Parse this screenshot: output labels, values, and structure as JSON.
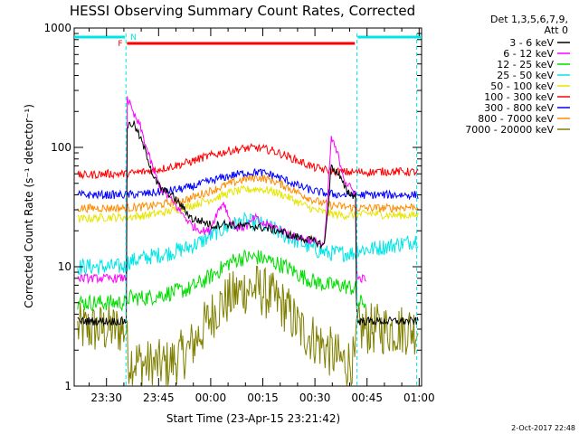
{
  "chart_data": {
    "type": "line",
    "title": "HESSI Observing Summary Count Rates, Corrected",
    "xlabel": "Start Time (23-Apr-15 23:21:42)",
    "ylabel": "Corrected Count Rate (s⁻¹ detector⁻¹)",
    "xlim_minutes": [
      -1,
      99
    ],
    "x_ticks": [
      {
        "label": "23:30",
        "value": 8.3
      },
      {
        "label": "23:45",
        "value": 23.3
      },
      {
        "label": "00:00",
        "value": 38.3
      },
      {
        "label": "00:15",
        "value": 53.3
      },
      {
        "label": "00:30",
        "value": 68.3
      },
      {
        "label": "00:45",
        "value": 83.3
      },
      {
        "label": "01:00",
        "value": 98.3
      }
    ],
    "yscale": "log",
    "ylim": [
      1,
      1000
    ],
    "y_ticks": [
      {
        "label": "1",
        "value": 1
      },
      {
        "label": "10",
        "value": 10
      },
      {
        "label": "100",
        "value": 100
      },
      {
        "label": "1000",
        "value": 1000
      }
    ],
    "legend_header": [
      "Det 1,3,5,6,7,9,",
      "Att 0"
    ],
    "legend_position": "right",
    "series": [
      {
        "name": "3 - 6 keV",
        "color": "#000000",
        "points": [
          [
            0,
            3.5
          ],
          [
            14,
            3.5
          ],
          [
            14.2,
            150
          ],
          [
            16,
            160
          ],
          [
            18,
            120
          ],
          [
            20,
            85
          ],
          [
            22,
            55
          ],
          [
            24,
            45
          ],
          [
            27,
            40
          ],
          [
            30,
            32
          ],
          [
            33,
            25
          ],
          [
            36,
            24
          ],
          [
            39,
            22
          ],
          [
            42,
            23
          ],
          [
            46,
            22
          ],
          [
            50,
            22
          ],
          [
            54,
            21
          ],
          [
            58,
            20
          ],
          [
            62,
            18
          ],
          [
            66,
            17
          ],
          [
            69,
            16
          ],
          [
            71,
            15
          ],
          [
            72,
            30
          ],
          [
            73,
            70
          ],
          [
            75,
            60
          ],
          [
            77,
            45
          ],
          [
            79,
            40
          ],
          [
            80,
            40
          ],
          [
            80.3,
            3.5
          ],
          [
            98,
            3.5
          ]
        ]
      },
      {
        "name": "6 - 12 keV",
        "color": "#ff00ff",
        "points": [
          [
            0,
            8
          ],
          [
            14,
            8
          ],
          [
            14.2,
            270
          ],
          [
            16,
            190
          ],
          [
            18,
            150
          ],
          [
            20,
            95
          ],
          [
            22,
            62
          ],
          [
            24,
            45
          ],
          [
            27,
            36
          ],
          [
            30,
            28
          ],
          [
            33,
            22
          ],
          [
            36,
            20
          ],
          [
            38,
            20
          ],
          [
            40,
            28
          ],
          [
            42,
            35
          ],
          [
            44,
            24
          ],
          [
            46,
            21
          ],
          [
            49,
            22
          ],
          [
            51,
            26
          ],
          [
            53,
            23
          ],
          [
            56,
            22
          ],
          [
            59,
            20
          ],
          [
            62,
            18
          ],
          [
            66,
            17
          ],
          [
            69,
            16
          ],
          [
            71,
            15
          ],
          [
            72,
            40
          ],
          [
            73,
            120
          ],
          [
            75,
            85
          ],
          [
            77,
            52
          ],
          [
            79,
            44
          ],
          [
            80,
            42
          ],
          [
            80.3,
            8
          ],
          [
            83,
            8
          ]
        ]
      },
      {
        "name": "12 - 25 keV",
        "color": "#00dd00",
        "points": [
          [
            0,
            5
          ],
          [
            14,
            5
          ],
          [
            14.5,
            5.5
          ],
          [
            20,
            5.5
          ],
          [
            26,
            6
          ],
          [
            32,
            6.5
          ],
          [
            36,
            7.5
          ],
          [
            40,
            9
          ],
          [
            44,
            11
          ],
          [
            48,
            12
          ],
          [
            52,
            12
          ],
          [
            56,
            11
          ],
          [
            60,
            10
          ],
          [
            64,
            8.5
          ],
          [
            68,
            7.5
          ],
          [
            72,
            7
          ],
          [
            76,
            7
          ],
          [
            80,
            6.5
          ],
          [
            80.3,
            5
          ],
          [
            83,
            5
          ]
        ]
      },
      {
        "name": "25 - 50 keV",
        "color": "#00e5e5",
        "points": [
          [
            0,
            10
          ],
          [
            14,
            10
          ],
          [
            14.5,
            11
          ],
          [
            20,
            12
          ],
          [
            26,
            13
          ],
          [
            32,
            14.5
          ],
          [
            36,
            16.5
          ],
          [
            40,
            19.5
          ],
          [
            44,
            22
          ],
          [
            48,
            24
          ],
          [
            52,
            23
          ],
          [
            56,
            21
          ],
          [
            60,
            18
          ],
          [
            64,
            16
          ],
          [
            68,
            14
          ],
          [
            72,
            13
          ],
          [
            76,
            13
          ],
          [
            80,
            13
          ],
          [
            80.3,
            14
          ],
          [
            84,
            14
          ],
          [
            90,
            15
          ],
          [
            95,
            16
          ],
          [
            98,
            17
          ]
        ]
      },
      {
        "name": "50 - 100 keV",
        "color": "#e6e600",
        "points": [
          [
            0,
            25
          ],
          [
            8,
            26
          ],
          [
            14,
            26
          ],
          [
            20,
            27
          ],
          [
            26,
            29
          ],
          [
            32,
            32
          ],
          [
            36,
            35
          ],
          [
            40,
            38
          ],
          [
            44,
            42
          ],
          [
            48,
            44
          ],
          [
            52,
            45
          ],
          [
            56,
            43
          ],
          [
            60,
            39
          ],
          [
            64,
            34
          ],
          [
            68,
            30
          ],
          [
            72,
            28
          ],
          [
            76,
            27
          ],
          [
            80,
            27
          ],
          [
            84,
            28
          ],
          [
            90,
            27
          ],
          [
            98,
            27
          ]
        ]
      },
      {
        "name": "100 - 300 keV",
        "color": "#ff0000",
        "points": [
          [
            0,
            58
          ],
          [
            8,
            60
          ],
          [
            14,
            60
          ],
          [
            20,
            63
          ],
          [
            26,
            68
          ],
          [
            32,
            75
          ],
          [
            36,
            82
          ],
          [
            40,
            88
          ],
          [
            44,
            94
          ],
          [
            48,
            98
          ],
          [
            52,
            99
          ],
          [
            56,
            94
          ],
          [
            60,
            85
          ],
          [
            64,
            76
          ],
          [
            68,
            68
          ],
          [
            72,
            64
          ],
          [
            76,
            62
          ],
          [
            80,
            62
          ],
          [
            84,
            62
          ],
          [
            90,
            63
          ],
          [
            98,
            62
          ]
        ]
      },
      {
        "name": "300 - 800 keV",
        "color": "#0000ff",
        "points": [
          [
            0,
            40
          ],
          [
            8,
            40
          ],
          [
            14,
            40
          ],
          [
            20,
            41
          ],
          [
            26,
            43
          ],
          [
            32,
            46
          ],
          [
            36,
            50
          ],
          [
            40,
            54
          ],
          [
            44,
            58
          ],
          [
            48,
            61
          ],
          [
            52,
            62
          ],
          [
            56,
            59
          ],
          [
            60,
            53
          ],
          [
            64,
            47
          ],
          [
            68,
            43
          ],
          [
            72,
            41
          ],
          [
            76,
            40
          ],
          [
            80,
            40
          ],
          [
            84,
            40
          ],
          [
            90,
            40
          ],
          [
            98,
            40
          ]
        ]
      },
      {
        "name": "800 - 7000 keV",
        "color": "#ff8c00",
        "points": [
          [
            0,
            31
          ],
          [
            8,
            31
          ],
          [
            14,
            31
          ],
          [
            20,
            32
          ],
          [
            26,
            34
          ],
          [
            32,
            37
          ],
          [
            36,
            41
          ],
          [
            40,
            45
          ],
          [
            44,
            50
          ],
          [
            48,
            54
          ],
          [
            52,
            56
          ],
          [
            56,
            53
          ],
          [
            60,
            47
          ],
          [
            64,
            41
          ],
          [
            68,
            36
          ],
          [
            72,
            33
          ],
          [
            76,
            32
          ],
          [
            80,
            31
          ],
          [
            84,
            31
          ],
          [
            90,
            31
          ],
          [
            98,
            32
          ]
        ]
      },
      {
        "name": "7000 - 20000 keV",
        "color": "#808000",
        "points": [
          [
            0,
            3
          ],
          [
            14,
            3
          ],
          [
            14.5,
            1.7
          ],
          [
            20,
            1.5
          ],
          [
            26,
            1.5
          ],
          [
            32,
            2
          ],
          [
            36,
            3
          ],
          [
            40,
            4.5
          ],
          [
            44,
            5.5
          ],
          [
            48,
            6.5
          ],
          [
            52,
            6.5
          ],
          [
            56,
            5.5
          ],
          [
            60,
            4.5
          ],
          [
            64,
            3
          ],
          [
            68,
            2.5
          ],
          [
            72,
            2
          ],
          [
            76,
            1.6
          ],
          [
            80,
            1.6
          ],
          [
            80.3,
            3
          ],
          [
            98,
            3
          ]
        ]
      }
    ],
    "annotations": {
      "night_bar": {
        "color": "#00e5e5",
        "segments": [
          [
            -1,
            13.6
          ],
          [
            80.6,
            99
          ]
        ],
        "dashed_lines": [
          13.9,
          80.4,
          97.6
        ]
      },
      "flare_bar": {
        "color": "#ff0000",
        "span": [
          14.2,
          79.8
        ]
      },
      "flag_labels": [
        {
          "text": "F",
          "color": "#ff0000"
        },
        {
          "text": "N",
          "color": "#00e5e5"
        }
      ]
    },
    "grid": false
  },
  "timestamp": "2-Oct-2017 22:48"
}
